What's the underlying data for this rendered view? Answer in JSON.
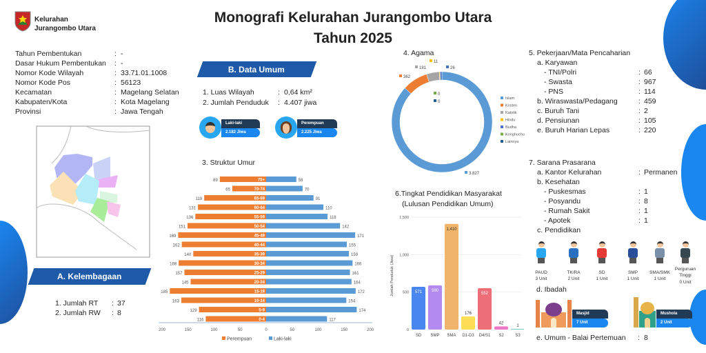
{
  "header": {
    "org_line1": "Kelurahan",
    "org_line2": "Jurangombo Utara",
    "title": "Monografi Kelurahan Jurangombo Utara",
    "subtitle": "Tahun 2025"
  },
  "profile": [
    {
      "label": "Tahun Pembentukan",
      "value": "-"
    },
    {
      "label": "Dasar Hukum Pembentukan",
      "value": "-"
    },
    {
      "label": "Nomor Kode Wilayah",
      "value": "33.71.01.1008"
    },
    {
      "label": "Nomor Kode Pos",
      "value": "56123"
    },
    {
      "label": "Kecamatan",
      "value": "Magelang Selatan"
    },
    {
      "label": "Kabupaten/Kota",
      "value": "Kota Magelang"
    },
    {
      "label": "Provinsi",
      "value": "Jawa Tengah"
    }
  ],
  "kelembagaan": {
    "title": "A. Kelembagaan",
    "items": [
      {
        "label": "1. Jumlah RT",
        "value": "37"
      },
      {
        "label": "2. Jumlah RW",
        "value": "8"
      }
    ]
  },
  "data_umum": {
    "title": "B. Data Umum",
    "items": [
      {
        "label": "1. Luas Wilayah",
        "value": "0,64 km²"
      },
      {
        "label": "2. Jumlah Penduduk",
        "value": "4.407 jiwa"
      }
    ],
    "male": {
      "label": "Laki-laki",
      "value": "2.182 Jiwa"
    },
    "female": {
      "label": "Perempuan",
      "value": "2.225 Jiwa"
    }
  },
  "colon": ":",
  "chart_data": [
    {
      "type": "bar",
      "title": "3. Struktur Umur",
      "orientation": "population-pyramid",
      "categories": [
        "75+",
        "70-74",
        "65-69",
        "60-64",
        "55-59",
        "50-54",
        "45-49",
        "40-44",
        "35-39",
        "30-34",
        "25-29",
        "20-24",
        "15-19",
        "10-14",
        "5-9",
        "0-4"
      ],
      "series": [
        {
          "name": "Perempuan",
          "color": "#ed7d31",
          "values": [
            89,
            65,
            119,
            131,
            136,
            151,
            169,
            162,
            140,
            168,
            157,
            145,
            185,
            163,
            129,
            116
          ]
        },
        {
          "name": "Laki-laki",
          "color": "#5b9bd5",
          "values": [
            58,
            70,
            91,
            110,
            118,
            142,
            171,
            155,
            159,
            166,
            161,
            164,
            172,
            154,
            174,
            117
          ]
        }
      ],
      "xticks": [
        "200",
        "150",
        "100",
        "50",
        "0",
        "50",
        "100",
        "150",
        "200"
      ],
      "xlim": [
        -200,
        200
      ],
      "legend": "bottom"
    },
    {
      "type": "pie",
      "title": "4. Agama",
      "donut": true,
      "categories": [
        "Islam",
        "Kristen",
        "Katolik",
        "Hindu",
        "Budha",
        "Konghuchu",
        "Lainnya"
      ],
      "values": [
        3827,
        362,
        181,
        11,
        26,
        0,
        0
      ],
      "labels": [
        "3.827",
        "362",
        "181",
        "11",
        "26",
        "0",
        "0"
      ],
      "colors": [
        "#5b9bd5",
        "#ed7d31",
        "#a5a5a5",
        "#ffc000",
        "#4472c4",
        "#70ad47",
        "#255e91"
      ],
      "legend": "right"
    },
    {
      "type": "bar",
      "title": "6.Tingkat Pendidikan Masyarakat",
      "subtitle": "(Lulusan Pendidikan Umum)",
      "ylabel": "Jumlah Penduduk (Jiwa)",
      "categories": [
        "SD",
        "SMP",
        "SMA",
        "D1-D3",
        "D4/S1",
        "S2",
        "S3"
      ],
      "values": [
        571,
        590,
        1410,
        176,
        552,
        42,
        1
      ],
      "labels": [
        "571",
        "590",
        "1,410",
        "176",
        "552",
        "42",
        "1"
      ],
      "colors": [
        "#4a86f0",
        "#b28af0",
        "#f0b46a",
        "#ffdd55",
        "#ee6e78",
        "#ee77c8",
        "#7ad0c8"
      ],
      "yticks": [
        "0",
        "500",
        "1,000",
        "1,500"
      ],
      "ylim": [
        0,
        1500
      ]
    }
  ],
  "pekerjaan": {
    "title": "5. Pekerjaan/Mata Pencaharian",
    "rows": [
      {
        "label": "a. Karyawan",
        "value": "",
        "indent": 1
      },
      {
        "label": "- TNI/Polri",
        "value": "66",
        "indent": 2
      },
      {
        "label": "- Swasta",
        "value": "967",
        "indent": 2
      },
      {
        "label": "- PNS",
        "value": "114",
        "indent": 2
      },
      {
        "label": "b. Wiraswasta/Pedagang",
        "value": "459",
        "indent": 1
      },
      {
        "label": "c. Buruh Tani",
        "value": "2",
        "indent": 1
      },
      {
        "label": "d. Pensiunan",
        "value": "105",
        "indent": 1
      },
      {
        "label": "e. Buruh Harian Lepas",
        "value": "220",
        "indent": 1
      }
    ]
  },
  "sarana": {
    "title": "7. Sarana Prasarana",
    "rows": [
      {
        "label": "a. Kantor Kelurahan",
        "value": "Permanen",
        "indent": 1
      },
      {
        "label": "b. Kesehatan",
        "value": "",
        "indent": 1
      },
      {
        "label": "- Puskesmas",
        "value": "1",
        "indent": 2
      },
      {
        "label": "- Posyandu",
        "value": "8",
        "indent": 2
      },
      {
        "label": "- Rumah Sakit",
        "value": "1",
        "indent": 2
      },
      {
        "label": "- Apotek",
        "value": "1",
        "indent": 2
      },
      {
        "label": "c. Pendidikan",
        "value": "",
        "indent": 1
      }
    ],
    "pendidikan": [
      {
        "name": "PAUD",
        "units": "3 Unit"
      },
      {
        "name": "TK/RA",
        "units": "2 Unit"
      },
      {
        "name": "SD",
        "units": "1 Unit"
      },
      {
        "name": "SMP",
        "units": "1 Unit"
      },
      {
        "name": "SMA/SMK",
        "units": "1 Unit"
      },
      {
        "name": "Perguruan Tinggi",
        "units": "0 Unit"
      }
    ],
    "ibadah_title": "d. Ibadah",
    "ibadah": [
      {
        "name": "Masjid",
        "units": "7 Unit"
      },
      {
        "name": "Mushola",
        "units": "2 Unit"
      }
    ],
    "umum": {
      "label": "e. Umum - Balai Pertemuan",
      "value": "8"
    }
  }
}
